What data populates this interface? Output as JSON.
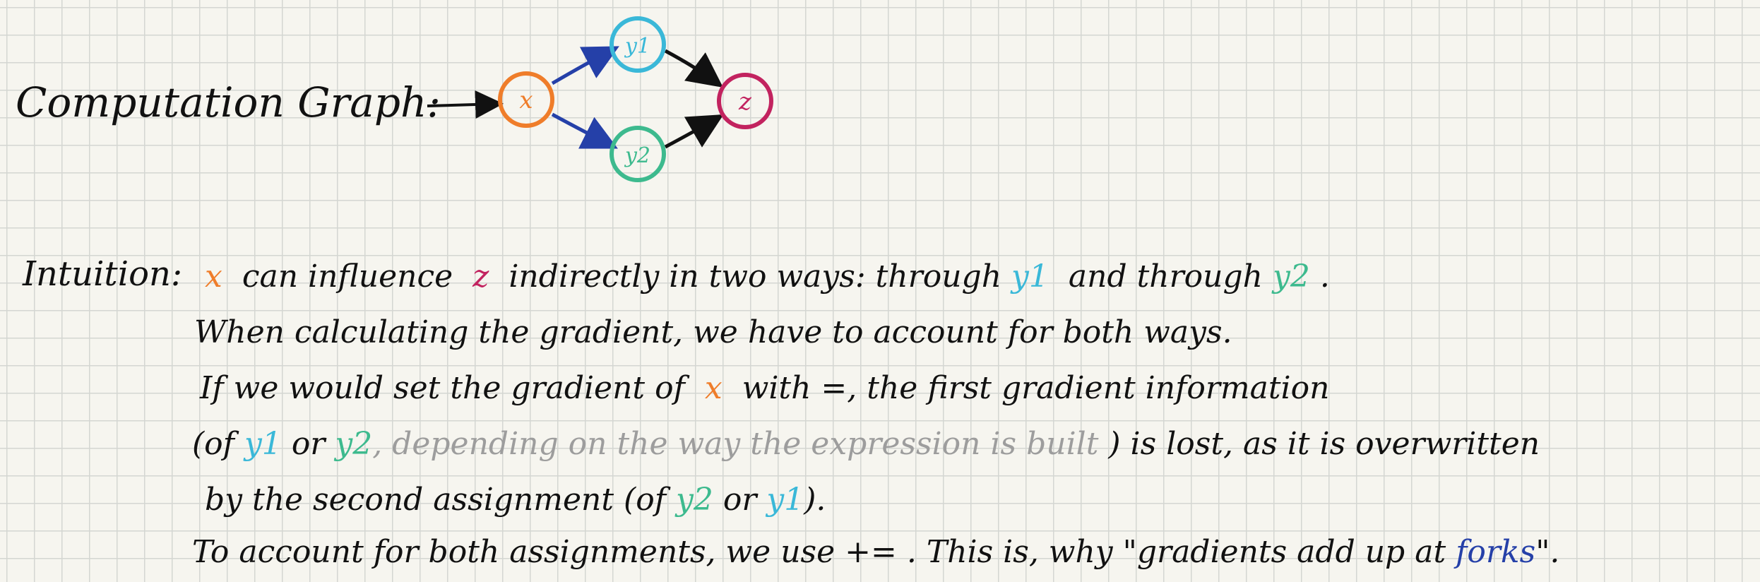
{
  "graph": {
    "heading": "Computation Graph:",
    "nodes": {
      "x": {
        "label": "x",
        "color": "#ef7d2a"
      },
      "y1": {
        "label": "y1",
        "color": "#3ab8d8"
      },
      "y2": {
        "label": "y2",
        "color": "#3dba8e"
      },
      "z": {
        "label": "z",
        "color": "#c2235f"
      }
    },
    "edge_colors": {
      "input": "#111111",
      "from_x": "#2540a8",
      "to_z": "#111111"
    }
  },
  "intuition": {
    "heading": "Intuition:",
    "line1": {
      "x": "x",
      "t1": "can influence",
      "z": "z",
      "t2": "indirectly in two ways: through",
      "y1": "y1",
      "t3": "and through",
      "y2": "y2",
      "t4": "."
    },
    "line2": {
      "t1": "When calculating the gradient, we have to account for both ways."
    },
    "line3": {
      "t1": "If we would set the gradient of",
      "x": "x",
      "t2": "with =, the first gradient information"
    },
    "line4": {
      "t1": "(of",
      "y1": "y1",
      "t2": "or",
      "y2": "y2",
      "grey": ", depending on the way the expression is built",
      "t3": ") is lost, as it is overwritten"
    },
    "line5": {
      "t1": "by the second assignment (of",
      "y2": "y2",
      "t2": "or",
      "y1": "y1",
      "t3": ")."
    },
    "line6": {
      "t1": "To account for both assignments, we use += . This is, why \"gradients add up at",
      "forks": "forks",
      "t2": "\"."
    }
  }
}
